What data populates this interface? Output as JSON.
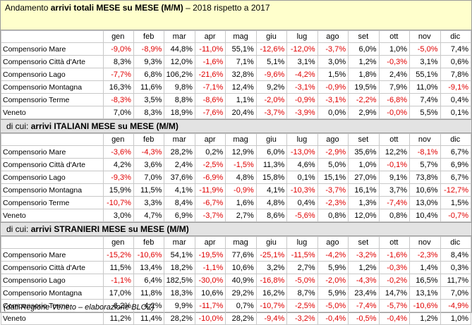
{
  "title": {
    "prefix": "Andamento ",
    "bold": "arrivi totali MESE su MESE (M/M)",
    "suffix": " – 2018 rispetto a 2017"
  },
  "months": [
    "gen",
    "feb",
    "mar",
    "apr",
    "mag",
    "giu",
    "lug",
    "ago",
    "set",
    "ott",
    "nov",
    "dic"
  ],
  "sections": [
    {
      "prefix": "",
      "bold": "",
      "rows": [
        {
          "label": "Compensorio Mare",
          "values": [
            "-9,0%",
            "-8,9%",
            "44,8%",
            "-11,0%",
            "55,1%",
            "-12,6%",
            "-12,0%",
            "-3,7%",
            "6,0%",
            "1,0%",
            "-5,0%",
            "7,4%"
          ]
        },
        {
          "label": "Compensorio Città d'Arte",
          "values": [
            "8,3%",
            "9,3%",
            "12,0%",
            "-1,6%",
            "7,1%",
            "5,1%",
            "3,1%",
            "3,0%",
            "1,2%",
            "-0,3%",
            "3,1%",
            "0,6%"
          ]
        },
        {
          "label": "Compensorio Lago",
          "values": [
            "-7,7%",
            "6,8%",
            "106,2%",
            "-21,6%",
            "32,8%",
            "-9,6%",
            "-4,2%",
            "1,5%",
            "1,8%",
            "2,4%",
            "55,1%",
            "7,8%"
          ]
        },
        {
          "label": "Compensorio Montagna",
          "values": [
            "16,3%",
            "11,6%",
            "9,8%",
            "-7,1%",
            "12,4%",
            "9,2%",
            "-3,1%",
            "-0,9%",
            "19,5%",
            "7,9%",
            "11,0%",
            "-9,1%"
          ]
        },
        {
          "label": "Compensorio Terme",
          "values": [
            "-8,3%",
            "3,5%",
            "8,8%",
            "-8,6%",
            "1,1%",
            "-2,0%",
            "-0,9%",
            "-3,1%",
            "-2,2%",
            "-6,8%",
            "7,4%",
            "0,4%"
          ]
        },
        {
          "label": "Veneto",
          "values": [
            "7,0%",
            "8,3%",
            "18,9%",
            "-7,6%",
            "20,4%",
            "-3,7%",
            "-3,9%",
            "0,0%",
            "2,9%",
            "-0,0%",
            "5,5%",
            "0,1%"
          ]
        }
      ]
    },
    {
      "prefix": "di cui: ",
      "bold": "arrivi ITALIANI MESE su MESE (M/M)",
      "rows": [
        {
          "label": "Compensorio Mare",
          "values": [
            "-3,6%",
            "-4,3%",
            "28,2%",
            "0,2%",
            "12,9%",
            "6,0%",
            "-13,0%",
            "-2,9%",
            "35,6%",
            "12,2%",
            "-8,1%",
            "6,7%"
          ]
        },
        {
          "label": "Compensorio Città d'Arte",
          "values": [
            "4,2%",
            "3,6%",
            "2,4%",
            "-2,5%",
            "-1,5%",
            "11,3%",
            "4,6%",
            "5,0%",
            "1,0%",
            "-0,1%",
            "5,7%",
            "6,9%"
          ]
        },
        {
          "label": "Compensorio Lago",
          "values": [
            "-9,3%",
            "7,0%",
            "37,6%",
            "-6,9%",
            "4,8%",
            "15,8%",
            "0,1%",
            "15,1%",
            "27,0%",
            "9,1%",
            "73,8%",
            "6,7%"
          ]
        },
        {
          "label": "Compensorio Montagna",
          "values": [
            "15,9%",
            "11,5%",
            "4,1%",
            "-11,9%",
            "-0,9%",
            "4,1%",
            "-10,3%",
            "-3,7%",
            "16,1%",
            "3,7%",
            "10,6%",
            "-12,7%"
          ]
        },
        {
          "label": "Compensorio Terme",
          "values": [
            "-10,7%",
            "3,3%",
            "8,4%",
            "-6,7%",
            "1,6%",
            "4,8%",
            "0,4%",
            "-2,3%",
            "1,3%",
            "-7,4%",
            "13,0%",
            "1,5%"
          ]
        },
        {
          "label": "Veneto",
          "values": [
            "3,0%",
            "4,7%",
            "6,9%",
            "-3,7%",
            "2,7%",
            "8,6%",
            "-5,6%",
            "0,8%",
            "12,0%",
            "0,8%",
            "10,4%",
            "-0,7%"
          ]
        }
      ]
    },
    {
      "prefix": "di cui: ",
      "bold": "arrivi STRANIERI MESE su MESE (M/M)",
      "rows": [
        {
          "label": "Compensorio Mare",
          "values": [
            "-15,2%",
            "-10,6%",
            "54,1%",
            "-19,5%",
            "77,6%",
            "-25,1%",
            "-11,5%",
            "-4,2%",
            "-3,2%",
            "-1,6%",
            "-2,3%",
            "8,4%"
          ]
        },
        {
          "label": "Compensorio Città d'Arte",
          "values": [
            "11,5%",
            "13,4%",
            "18,2%",
            "-1,1%",
            "10,6%",
            "3,2%",
            "2,7%",
            "5,9%",
            "1,2%",
            "-0,3%",
            "1,4%",
            "0,3%"
          ]
        },
        {
          "label": "Compensorio Lago",
          "values": [
            "-1,1%",
            "6,4%",
            "182,5%",
            "-30,0%",
            "40,9%",
            "-16,8%",
            "-5,0%",
            "-2,0%",
            "-4,3%",
            "-0,2%",
            "16,5%",
            "11,7%"
          ]
        },
        {
          "label": "Compensorio Montagna",
          "values": [
            "17,0%",
            "11,8%",
            "18,3%",
            "10,6%",
            "29,2%",
            "16,2%",
            "8,7%",
            "5,9%",
            "23,4%",
            "14,7%",
            "13,1%",
            "7,0%"
          ]
        },
        {
          "label": "Compensorio Terme",
          "values": [
            "6,2%",
            "4,2%",
            "9,9%",
            "-11,7%",
            "0,7%",
            "-10,7%",
            "-2,5%",
            "-5,0%",
            "-7,4%",
            "-5,7%",
            "-10,6%",
            "-4,9%"
          ]
        },
        {
          "label": "Veneto",
          "values": [
            "11,2%",
            "11,4%",
            "28,2%",
            "-10,0%",
            "28,2%",
            "-9,4%",
            "-3,2%",
            "-0,4%",
            "-0,5%",
            "-0,4%",
            "1,2%",
            "1,0%"
          ]
        }
      ]
    }
  ],
  "footnote": "(dati Regione Veneto – elaborazione BLOZ)",
  "colors": {
    "title_bg": "#ffffcc",
    "section_bg": "#e3e3e3",
    "negative": "#e00000",
    "grid": "#c8c8c8"
  }
}
